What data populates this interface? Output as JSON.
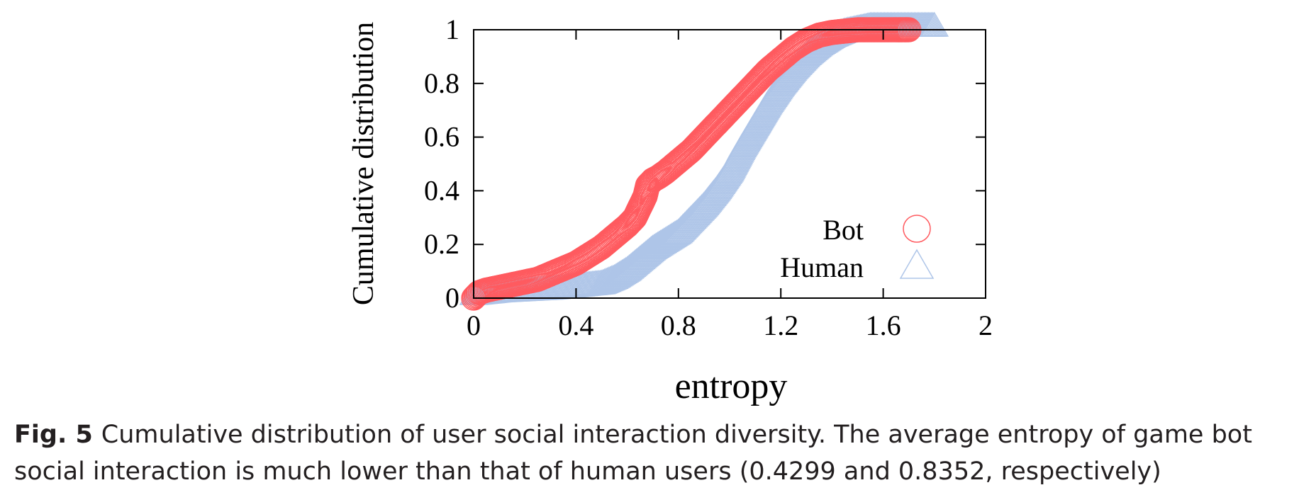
{
  "chart_data": {
    "type": "scatter",
    "title": "",
    "xlabel": "entropy",
    "ylabel": "Cumulative distribution",
    "xlim": [
      0,
      2
    ],
    "ylim": [
      0,
      1
    ],
    "xticks": [
      "0",
      "0.4",
      "0.8",
      "1.2",
      "1.6",
      "2"
    ],
    "yticks": [
      "0",
      "0.2",
      "0.4",
      "0.6",
      "0.8",
      "1"
    ],
    "grid": false,
    "legend_position": "bottom-right",
    "series": [
      {
        "name": "Bot",
        "marker": "circle",
        "color": "#ff5a5f",
        "x": [
          0.0,
          0.02,
          0.05,
          0.1,
          0.15,
          0.2,
          0.25,
          0.3,
          0.35,
          0.4,
          0.45,
          0.5,
          0.55,
          0.6,
          0.63,
          0.65,
          0.67,
          0.68,
          0.7,
          0.72,
          0.75,
          0.8,
          0.85,
          0.9,
          0.95,
          1.0,
          1.05,
          1.1,
          1.15,
          1.2,
          1.25,
          1.3,
          1.35,
          1.4,
          1.45,
          1.5,
          1.55,
          1.6,
          1.65,
          1.7
        ],
        "y": [
          0.0,
          0.02,
          0.03,
          0.04,
          0.05,
          0.06,
          0.07,
          0.09,
          0.11,
          0.13,
          0.16,
          0.19,
          0.23,
          0.27,
          0.3,
          0.34,
          0.38,
          0.42,
          0.44,
          0.45,
          0.47,
          0.51,
          0.55,
          0.6,
          0.65,
          0.7,
          0.75,
          0.8,
          0.85,
          0.89,
          0.93,
          0.96,
          0.98,
          0.99,
          0.995,
          1.0,
          1.0,
          1.0,
          1.0,
          1.0
        ]
      },
      {
        "name": "Human",
        "marker": "triangle",
        "color": "#aec5e8",
        "x": [
          0.0,
          0.05,
          0.1,
          0.2,
          0.3,
          0.4,
          0.5,
          0.55,
          0.6,
          0.65,
          0.7,
          0.75,
          0.8,
          0.85,
          0.9,
          0.95,
          1.0,
          1.05,
          1.1,
          1.15,
          1.2,
          1.25,
          1.3,
          1.35,
          1.4,
          1.45,
          1.5,
          1.55,
          1.6,
          1.65,
          1.7,
          1.75,
          1.8
        ],
        "y": [
          0.0,
          0.005,
          0.01,
          0.015,
          0.02,
          0.03,
          0.04,
          0.06,
          0.09,
          0.13,
          0.17,
          0.2,
          0.23,
          0.28,
          0.33,
          0.39,
          0.46,
          0.55,
          0.63,
          0.71,
          0.78,
          0.84,
          0.89,
          0.93,
          0.96,
          0.98,
          0.99,
          1.0,
          1.0,
          1.0,
          1.0,
          1.0,
          1.0
        ]
      }
    ]
  },
  "caption": {
    "label": "Fig. 5",
    "text": "Cumulative distribution of user social interaction diversity. The average entropy of game bot social interaction is much lower than that of human users (0.4299 and 0.8352, respectively)"
  }
}
